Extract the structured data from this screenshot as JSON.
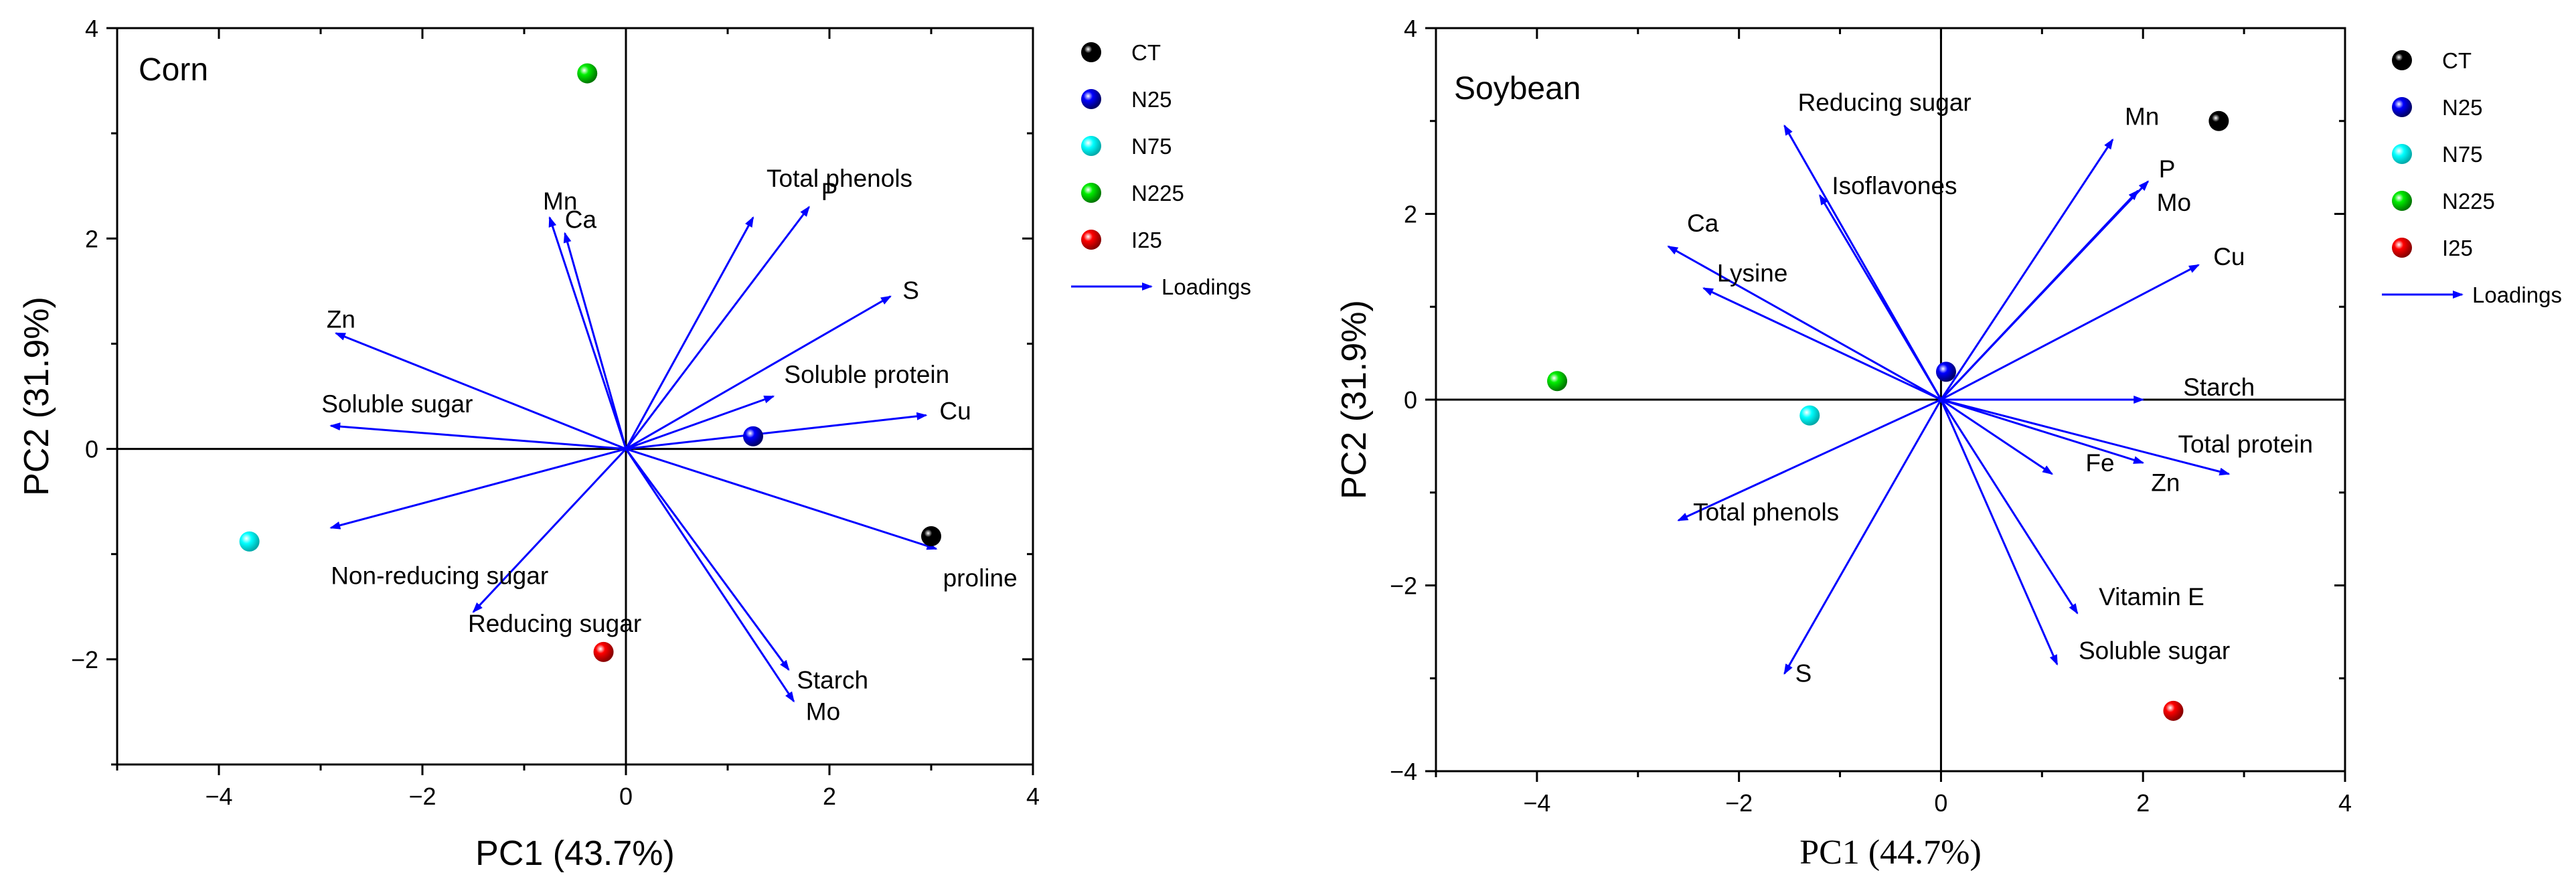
{
  "chart_data": [
    {
      "type": "scatter",
      "title": "Corn",
      "xlabel": "PC1 (43.7%)",
      "ylabel": "PC2 (31.9%)",
      "xlim": [
        -5,
        4
      ],
      "ylim": [
        -3,
        4
      ],
      "xticks": [
        -4,
        -2,
        0,
        2,
        4
      ],
      "yticks": [
        -2,
        0,
        2,
        4
      ],
      "tick_labels_x": [
        "−4",
        "−2",
        "0",
        "2",
        "4"
      ],
      "tick_labels_y": [
        "−2",
        "0",
        "2",
        "4"
      ],
      "points": [
        {
          "name": "CT",
          "x": 3.0,
          "y": -0.83
        },
        {
          "name": "N25",
          "x": 1.25,
          "y": 0.12
        },
        {
          "name": "N75",
          "x": -3.7,
          "y": -0.88
        },
        {
          "name": "N225",
          "x": -0.38,
          "y": 3.57
        },
        {
          "name": "I25",
          "x": -0.22,
          "y": -1.93
        }
      ],
      "loadings": [
        {
          "label": "Total phenols",
          "x": 1.25,
          "y": 2.2
        },
        {
          "label": "P",
          "x": 1.8,
          "y": 2.3
        },
        {
          "label": "S",
          "x": 2.6,
          "y": 1.45
        },
        {
          "label": "Soluble protein",
          "x": 1.45,
          "y": 0.5
        },
        {
          "label": "Cu",
          "x": 2.95,
          "y": 0.32
        },
        {
          "label": "proline",
          "x": 3.05,
          "y": -0.95
        },
        {
          "label": "Starch",
          "x": 1.6,
          "y": -2.1
        },
        {
          "label": "Mo",
          "x": 1.65,
          "y": -2.4
        },
        {
          "label": "Reducing sugar",
          "x": -1.5,
          "y": -1.55
        },
        {
          "label": "Non-reducing sugar",
          "x": -2.9,
          "y": -0.75
        },
        {
          "label": "Soluble sugar",
          "x": -2.9,
          "y": 0.22
        },
        {
          "label": "Zn",
          "x": -2.85,
          "y": 1.1
        },
        {
          "label": "Mn",
          "x": -0.75,
          "y": 2.2
        },
        {
          "label": "Ca",
          "x": -0.6,
          "y": 2.05
        }
      ],
      "legend": [
        {
          "name": "CT",
          "color": "#000000"
        },
        {
          "name": "N25",
          "color": "#0000ff"
        },
        {
          "name": "N75",
          "color": "#00ffff"
        },
        {
          "name": "N225",
          "color": "#00dd00"
        },
        {
          "name": "I25",
          "color": "#ff0000"
        },
        {
          "name": "Loadings",
          "color": "#0000ff"
        }
      ],
      "legend_position": "right"
    },
    {
      "type": "scatter",
      "title": "Soybean",
      "xlabel": "PC1 (44.7%)",
      "ylabel": "PC2 (31.9%)",
      "xlim": [
        -5,
        4
      ],
      "ylim": [
        -4,
        4
      ],
      "xticks": [
        -4,
        -2,
        0,
        2,
        4
      ],
      "yticks": [
        -4,
        -2,
        0,
        2,
        4
      ],
      "tick_labels_x": [
        "−4",
        "−2",
        "0",
        "2",
        "4"
      ],
      "tick_labels_y": [
        "−4",
        "−2",
        "0",
        "2",
        "4"
      ],
      "points": [
        {
          "name": "CT",
          "x": 2.75,
          "y": 3.0
        },
        {
          "name": "N25",
          "x": 0.05,
          "y": 0.3
        },
        {
          "name": "N75",
          "x": -1.3,
          "y": -0.17
        },
        {
          "name": "N225",
          "x": -3.8,
          "y": 0.2
        },
        {
          "name": "I25",
          "x": 2.3,
          "y": -3.35
        }
      ],
      "loadings": [
        {
          "label": "Reducing sugar",
          "x": -1.55,
          "y": 2.95
        },
        {
          "label": "Isoflavones",
          "x": -1.2,
          "y": 2.2
        },
        {
          "label": "Mn",
          "x": 1.7,
          "y": 2.8
        },
        {
          "label": "P",
          "x": 2.05,
          "y": 2.35
        },
        {
          "label": "Mo",
          "x": 1.95,
          "y": 2.25
        },
        {
          "label": "Cu",
          "x": 2.55,
          "y": 1.45
        },
        {
          "label": "Ca",
          "x": -2.7,
          "y": 1.65
        },
        {
          "label": "Lysine",
          "x": -2.35,
          "y": 1.2
        },
        {
          "label": "Starch",
          "x": 2.0,
          "y": 0.0
        },
        {
          "label": "Fe",
          "x": 1.1,
          "y": -0.8
        },
        {
          "label": "Zn",
          "x": 2.0,
          "y": -0.68
        },
        {
          "label": "Total protein",
          "x": 2.85,
          "y": -0.8
        },
        {
          "label": "Total phenols",
          "x": -2.6,
          "y": -1.3
        },
        {
          "label": "Vitamin E",
          "x": 1.35,
          "y": -2.3
        },
        {
          "label": "Soluble sugar",
          "x": 1.15,
          "y": -2.85
        },
        {
          "label": "S",
          "x": -1.55,
          "y": -2.95
        }
      ],
      "legend": [
        {
          "name": "CT",
          "color": "#000000"
        },
        {
          "name": "N25",
          "color": "#0000ff"
        },
        {
          "name": "N75",
          "color": "#00ffff"
        },
        {
          "name": "N225",
          "color": "#00dd00"
        },
        {
          "name": "I25",
          "color": "#ff0000"
        },
        {
          "name": "Loadings",
          "color": "#0000ff"
        }
      ],
      "legend_position": "right"
    }
  ]
}
